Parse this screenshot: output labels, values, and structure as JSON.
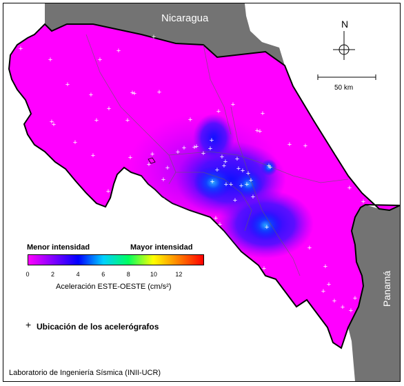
{
  "countries": {
    "north": "Nicaragua",
    "south": "Panamá"
  },
  "north_arrow": "N",
  "scale": {
    "label": "50 km"
  },
  "legend": {
    "min_label": "Menor intensidad",
    "max_label": "Mayor intensidad",
    "ticks": [
      "0",
      "2",
      "4",
      "6",
      "8",
      "10",
      "12"
    ],
    "axis_title": "Aceleración ESTE-OESTE (cm/s²)",
    "range": [
      0,
      14
    ],
    "colors": [
      "#ff00ff",
      "#8000ff",
      "#0000ff",
      "#00d0ff",
      "#00ff60",
      "#ffff00",
      "#ff8000",
      "#ff0000"
    ]
  },
  "stations": {
    "marker": "+",
    "label": "Ubicación de los acelerógrafos"
  },
  "credit": "Laboratorio de Ingeniería Sísmica (INII-UCR)",
  "colors": {
    "land_low": "#ff00ff",
    "neighbor_land": "#737373",
    "sea": "#ffffff",
    "station_marker": "#ffffff"
  }
}
